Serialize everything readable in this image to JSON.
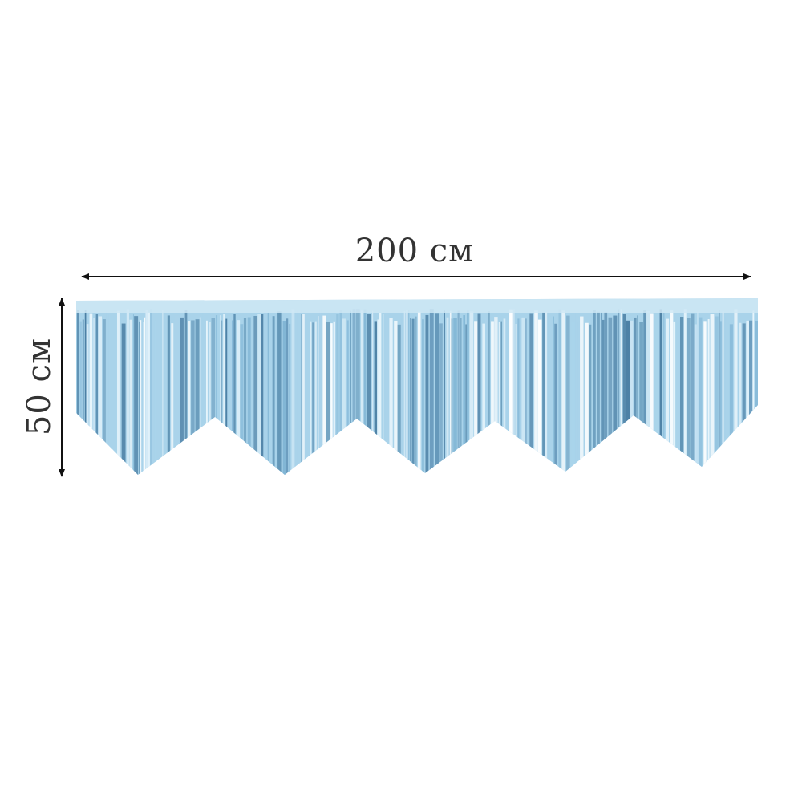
{
  "dimensions": {
    "width_label": "200 см",
    "height_label": "50 см"
  },
  "product": {
    "name_icon": "fringe-garland",
    "color": "#a9d3ea",
    "dark_color": "#5c90b3",
    "light_color": "#e8f5fc",
    "point_count": 5
  },
  "colors": {
    "text": "#333333",
    "arrow": "#111111",
    "background": "#ffffff"
  }
}
